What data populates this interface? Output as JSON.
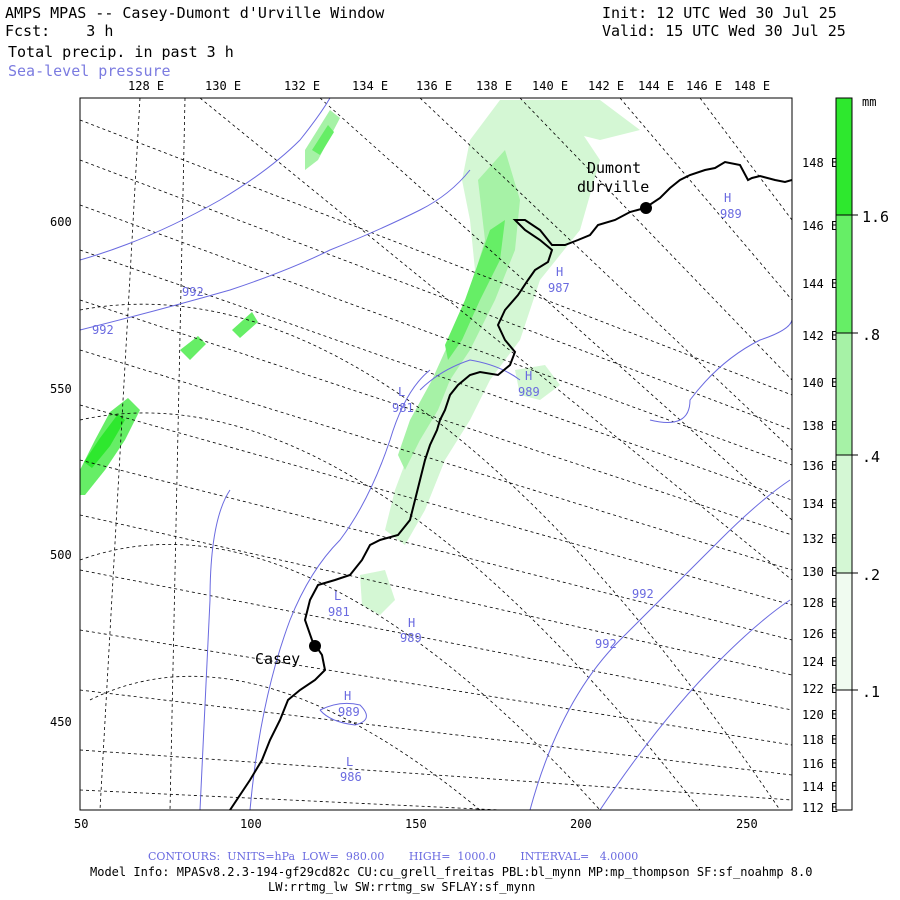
{
  "header": {
    "title": "AMPS MPAS -- Casey-Dumont d'Urville Window",
    "fcst": "Fcst:    3 h",
    "init": "Init: 12 UTC Wed 30 Jul 25",
    "valid": "Valid: 15 UTC Wed 30 Jul 25",
    "field": "Total precip. in past 3 h",
    "overlay": "Sea-level pressure"
  },
  "map": {
    "top_lon_labels": [
      "128 E",
      "130 E",
      "132 E",
      "134 E",
      "136 E",
      "138 E",
      "140 E",
      "142 E",
      "144 E",
      "146 E",
      "148 E"
    ],
    "right_lon_labels": [
      "148 E",
      "146 E",
      "144 E",
      "142 E",
      "140 E",
      "138 E",
      "136 E",
      "134 E",
      "132 E",
      "130 E",
      "128 E",
      "126 E",
      "124 E",
      "122 E",
      "120 E",
      "118 E",
      "116 E",
      "114 E",
      "112 E"
    ],
    "x_ticks": [
      "50",
      "100",
      "150",
      "200",
      "250"
    ],
    "y_ticks": [
      "600",
      "550",
      "500",
      "450"
    ],
    "stations": [
      {
        "name": "Casey"
      },
      {
        "name_line1": "Dumont",
        "name_line2": "dUrville"
      }
    ],
    "pressure_labels": [
      {
        "text": "992"
      },
      {
        "text": "992"
      },
      {
        "text": "L"
      },
      {
        "text": "981"
      },
      {
        "text": "H"
      },
      {
        "text": "989"
      },
      {
        "text": "H"
      },
      {
        "text": "987"
      },
      {
        "text": "H"
      },
      {
        "text": "989"
      },
      {
        "text": "L"
      },
      {
        "text": "981"
      },
      {
        "text": "H"
      },
      {
        "text": "989"
      },
      {
        "text": "H"
      },
      {
        "text": "989"
      },
      {
        "text": "L"
      },
      {
        "text": "986"
      },
      {
        "text": "992"
      },
      {
        "text": "992"
      }
    ]
  },
  "colorbar": {
    "unit": "mm",
    "labels": [
      "1.6",
      ".8",
      ".4",
      ".2",
      ".1"
    ],
    "colors": [
      "#2ee82e",
      "#66ee66",
      "#a6f2a6",
      "#d4f7d4",
      "#f0fbf0"
    ]
  },
  "footer": {
    "contours": "CONTOURS:  UNITS=hPa  LOW=  980.00       HIGH=  1000.0       INTERVAL=   4.0000",
    "model_info_1": "Model Info: MPASv8.2.3-194-gf29cd82c CU:cu_grell_freitas PBL:bl_mynn MP:mp_thompson SF:sf_noahmp 8.0",
    "model_info_2": "LW:rrtmg_lw SW:rrtmg_sw SFLAY:sf_mynn"
  }
}
